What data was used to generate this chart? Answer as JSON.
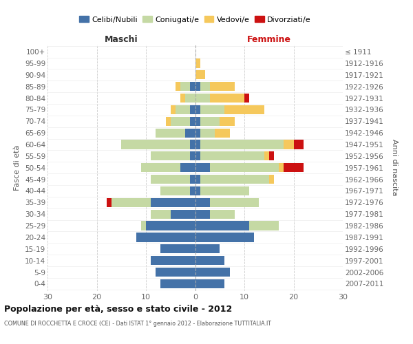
{
  "age_groups": [
    "100+",
    "95-99",
    "90-94",
    "85-89",
    "80-84",
    "75-79",
    "70-74",
    "65-69",
    "60-64",
    "55-59",
    "50-54",
    "45-49",
    "40-44",
    "35-39",
    "30-34",
    "25-29",
    "20-24",
    "15-19",
    "10-14",
    "5-9",
    "0-4"
  ],
  "birth_years": [
    "≤ 1911",
    "1912-1916",
    "1917-1921",
    "1922-1926",
    "1927-1931",
    "1932-1936",
    "1937-1941",
    "1942-1946",
    "1947-1951",
    "1952-1956",
    "1957-1961",
    "1962-1966",
    "1967-1971",
    "1972-1976",
    "1977-1981",
    "1982-1986",
    "1987-1991",
    "1992-1996",
    "1997-2001",
    "2002-2006",
    "2007-2011"
  ],
  "colors": {
    "celibi": "#4472a8",
    "coniugati": "#c5d9a4",
    "vedovi": "#f5c85c",
    "divorziati": "#cc1111"
  },
  "maschi": {
    "celibi": [
      0,
      0,
      0,
      1,
      0,
      1,
      1,
      2,
      1,
      1,
      3,
      1,
      1,
      9,
      5,
      10,
      12,
      7,
      9,
      8,
      7
    ],
    "coniugati": [
      0,
      0,
      0,
      2,
      2,
      3,
      4,
      6,
      14,
      8,
      8,
      8,
      6,
      8,
      4,
      1,
      0,
      0,
      0,
      0,
      0
    ],
    "vedovi": [
      0,
      0,
      0,
      1,
      1,
      1,
      1,
      0,
      0,
      0,
      0,
      0,
      0,
      0,
      0,
      0,
      0,
      0,
      0,
      0,
      0
    ],
    "divorziati": [
      0,
      0,
      0,
      0,
      0,
      0,
      0,
      0,
      0,
      0,
      0,
      0,
      0,
      1,
      0,
      0,
      0,
      0,
      0,
      0,
      0
    ]
  },
  "femmine": {
    "celibi": [
      0,
      0,
      0,
      1,
      0,
      1,
      1,
      1,
      1,
      1,
      3,
      1,
      1,
      3,
      3,
      11,
      12,
      5,
      6,
      7,
      6
    ],
    "coniugati": [
      0,
      0,
      0,
      2,
      3,
      5,
      4,
      3,
      17,
      13,
      14,
      14,
      10,
      10,
      5,
      6,
      0,
      0,
      0,
      0,
      0
    ],
    "vedovi": [
      0,
      1,
      2,
      5,
      7,
      8,
      3,
      3,
      2,
      1,
      1,
      1,
      0,
      0,
      0,
      0,
      0,
      0,
      0,
      0,
      0
    ],
    "divorziati": [
      0,
      0,
      0,
      0,
      1,
      0,
      0,
      0,
      2,
      1,
      4,
      0,
      0,
      0,
      0,
      0,
      0,
      0,
      0,
      0,
      0
    ]
  },
  "xlim": 30,
  "title": "Popolazione per età, sesso e stato civile - 2012",
  "subtitle": "COMUNE DI ROCCHETTA E CROCE (CE) - Dati ISTAT 1° gennaio 2012 - Elaborazione TUTTITALIA.IT",
  "ylabel_left": "Fasce di età",
  "ylabel_right": "Anni di nascita",
  "label_maschi": "Maschi",
  "label_femmine": "Femmine",
  "legend_labels": [
    "Celibi/Nubili",
    "Coniugati/e",
    "Vedovi/e",
    "Divorziati/e"
  ],
  "background_color": "#ffffff",
  "grid_color": "#cccccc"
}
